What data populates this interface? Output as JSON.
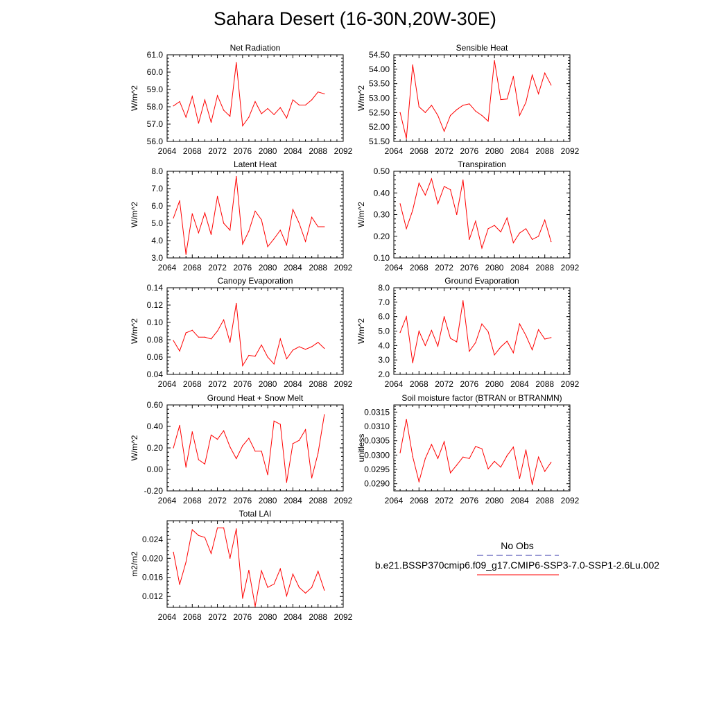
{
  "title": "Sahara Desert (16-30N,20W-30E)",
  "legend": {
    "obs_label": "No Obs",
    "obs_color": "#3333aa",
    "case_label": "b.e21.BSSP370cmip6.f09_g17.CMIP6-SSP3-7.0-SSP1-2.6Lu.002",
    "case_color": "#ff0000"
  },
  "series_color": "#ff0000",
  "chart_data": [
    {
      "type": "line",
      "title": "Net Radiation",
      "ylabel": "W/m^2",
      "xlim": [
        2064,
        2092
      ],
      "xticks": [
        2064,
        2068,
        2072,
        2076,
        2080,
        2084,
        2088,
        2092
      ],
      "ylim": [
        56.0,
        61.0
      ],
      "yticks": [
        "56.0",
        "57.0",
        "58.0",
        "59.0",
        "60.0",
        "61.0"
      ],
      "x": [
        2065,
        2066,
        2067,
        2068,
        2069,
        2070,
        2071,
        2072,
        2073,
        2074,
        2075,
        2076,
        2077,
        2078,
        2079,
        2080,
        2081,
        2082,
        2083,
        2084,
        2085,
        2086,
        2087,
        2088,
        2089
      ],
      "values": [
        58.05,
        58.3,
        57.4,
        58.6,
        57.05,
        58.4,
        57.1,
        58.65,
        57.8,
        57.45,
        60.55,
        56.9,
        57.4,
        58.3,
        57.6,
        57.9,
        57.55,
        57.95,
        57.35,
        58.4,
        58.1,
        58.1,
        58.4,
        58.85,
        58.75
      ]
    },
    {
      "type": "line",
      "title": "Sensible Heat",
      "ylabel": "W/m^2",
      "xlim": [
        2064,
        2092
      ],
      "xticks": [
        2064,
        2068,
        2072,
        2076,
        2080,
        2084,
        2088,
        2092
      ],
      "ylim": [
        51.5,
        54.5
      ],
      "yticks": [
        "51.50",
        "52.00",
        "52.50",
        "53.00",
        "53.50",
        "54.00",
        "54.50"
      ],
      "x": [
        2065,
        2066,
        2067,
        2068,
        2069,
        2070,
        2071,
        2072,
        2073,
        2074,
        2075,
        2076,
        2077,
        2078,
        2079,
        2080,
        2081,
        2082,
        2083,
        2084,
        2085,
        2086,
        2087,
        2088,
        2089
      ],
      "values": [
        52.5,
        51.6,
        54.15,
        52.7,
        52.5,
        52.75,
        52.4,
        51.85,
        52.4,
        52.6,
        52.75,
        52.8,
        52.55,
        52.4,
        52.2,
        54.3,
        52.95,
        52.97,
        53.75,
        52.4,
        52.85,
        53.8,
        53.15,
        53.87,
        53.45
      ]
    },
    {
      "type": "line",
      "title": "Latent Heat",
      "ylabel": "W/m^2",
      "xlim": [
        2064,
        2092
      ],
      "xticks": [
        2064,
        2068,
        2072,
        2076,
        2080,
        2084,
        2088,
        2092
      ],
      "ylim": [
        3.0,
        8.0
      ],
      "yticks": [
        "3.0",
        "4.0",
        "5.0",
        "6.0",
        "7.0",
        "8.0"
      ],
      "x": [
        2065,
        2066,
        2067,
        2068,
        2069,
        2070,
        2071,
        2072,
        2073,
        2074,
        2075,
        2076,
        2077,
        2078,
        2079,
        2080,
        2081,
        2082,
        2083,
        2084,
        2085,
        2086,
        2087,
        2088,
        2089
      ],
      "values": [
        5.3,
        6.3,
        3.2,
        5.55,
        4.45,
        5.6,
        4.35,
        6.55,
        5.0,
        4.6,
        7.7,
        3.8,
        4.55,
        5.7,
        5.2,
        3.65,
        4.1,
        4.6,
        3.75,
        5.8,
        5.0,
        3.95,
        5.35,
        4.8,
        4.8
      ]
    },
    {
      "type": "line",
      "title": "Transpiration",
      "ylabel": "W/m^2",
      "xlim": [
        2064,
        2092
      ],
      "xticks": [
        2064,
        2068,
        2072,
        2076,
        2080,
        2084,
        2088,
        2092
      ],
      "ylim": [
        0.1,
        0.5
      ],
      "yticks": [
        "0.10",
        "0.20",
        "0.30",
        "0.40",
        "0.50"
      ],
      "x": [
        2065,
        2066,
        2067,
        2068,
        2069,
        2070,
        2071,
        2072,
        2073,
        2074,
        2075,
        2076,
        2077,
        2078,
        2079,
        2080,
        2081,
        2082,
        2083,
        2084,
        2085,
        2086,
        2087,
        2088,
        2089
      ],
      "values": [
        0.35,
        0.235,
        0.32,
        0.445,
        0.39,
        0.465,
        0.35,
        0.43,
        0.415,
        0.3,
        0.46,
        0.185,
        0.27,
        0.145,
        0.235,
        0.25,
        0.22,
        0.285,
        0.17,
        0.215,
        0.235,
        0.185,
        0.2,
        0.275,
        0.175
      ]
    },
    {
      "type": "line",
      "title": "Canopy Evaporation",
      "ylabel": "W/m^2",
      "xlim": [
        2064,
        2092
      ],
      "xticks": [
        2064,
        2068,
        2072,
        2076,
        2080,
        2084,
        2088,
        2092
      ],
      "ylim": [
        0.04,
        0.14
      ],
      "yticks": [
        "0.04",
        "0.06",
        "0.08",
        "0.10",
        "0.12",
        "0.14"
      ],
      "x": [
        2065,
        2066,
        2067,
        2068,
        2069,
        2070,
        2071,
        2072,
        2073,
        2074,
        2075,
        2076,
        2077,
        2078,
        2079,
        2080,
        2081,
        2082,
        2083,
        2084,
        2085,
        2086,
        2087,
        2088,
        2089
      ],
      "values": [
        0.079,
        0.067,
        0.088,
        0.091,
        0.083,
        0.083,
        0.081,
        0.09,
        0.103,
        0.077,
        0.122,
        0.05,
        0.062,
        0.061,
        0.074,
        0.06,
        0.052,
        0.081,
        0.058,
        0.068,
        0.072,
        0.069,
        0.072,
        0.077,
        0.07
      ]
    },
    {
      "type": "line",
      "title": "Ground Evaporation",
      "ylabel": "W/m^2",
      "xlim": [
        2064,
        2092
      ],
      "xticks": [
        2064,
        2068,
        2072,
        2076,
        2080,
        2084,
        2088,
        2092
      ],
      "ylim": [
        2.0,
        8.0
      ],
      "yticks": [
        "2.0",
        "3.0",
        "4.0",
        "5.0",
        "6.0",
        "7.0",
        "8.0"
      ],
      "x": [
        2065,
        2066,
        2067,
        2068,
        2069,
        2070,
        2071,
        2072,
        2073,
        2074,
        2075,
        2076,
        2077,
        2078,
        2079,
        2080,
        2081,
        2082,
        2083,
        2084,
        2085,
        2086,
        2087,
        2088,
        2089
      ],
      "values": [
        4.9,
        6.0,
        2.8,
        5.0,
        4.0,
        5.05,
        3.95,
        6.0,
        4.5,
        4.25,
        7.1,
        3.6,
        4.2,
        5.5,
        4.95,
        3.35,
        3.9,
        4.3,
        3.5,
        5.5,
        4.7,
        3.7,
        5.1,
        4.45,
        4.55
      ]
    },
    {
      "type": "line",
      "title": "Ground Heat + Snow Melt",
      "ylabel": "W/m^2",
      "xlim": [
        2064,
        2092
      ],
      "xticks": [
        2064,
        2068,
        2072,
        2076,
        2080,
        2084,
        2088,
        2092
      ],
      "ylim": [
        -0.2,
        0.6
      ],
      "yticks": [
        "-0.20",
        "0.00",
        "0.20",
        "0.40",
        "0.60"
      ],
      "x": [
        2065,
        2066,
        2067,
        2068,
        2069,
        2070,
        2071,
        2072,
        2073,
        2074,
        2075,
        2076,
        2077,
        2078,
        2079,
        2080,
        2081,
        2082,
        2083,
        2084,
        2085,
        2086,
        2087,
        2088,
        2089
      ],
      "values": [
        0.2,
        0.41,
        0.02,
        0.35,
        0.09,
        0.05,
        0.32,
        0.28,
        0.36,
        0.21,
        0.1,
        0.22,
        0.29,
        0.17,
        0.17,
        -0.05,
        0.45,
        0.42,
        -0.12,
        0.24,
        0.27,
        0.37,
        -0.08,
        0.15,
        0.51
      ]
    },
    {
      "type": "line",
      "title": "Soil moisture factor (BTRAN or BTRANMN)",
      "ylabel": "unitless",
      "xlim": [
        2064,
        2092
      ],
      "xticks": [
        2064,
        2068,
        2072,
        2076,
        2080,
        2084,
        2088,
        2092
      ],
      "ylim": [
        0.02875,
        0.03175
      ],
      "yticks": [
        "0.0290",
        "0.0295",
        "0.0300",
        "0.0305",
        "0.0310",
        "0.0315"
      ],
      "x": [
        2065,
        2066,
        2067,
        2068,
        2069,
        2070,
        2071,
        2072,
        2073,
        2074,
        2075,
        2076,
        2077,
        2078,
        2079,
        2080,
        2081,
        2082,
        2083,
        2084,
        2085,
        2086,
        2087,
        2088,
        2089
      ],
      "values": [
        0.03008,
        0.03125,
        0.02995,
        0.02907,
        0.02988,
        0.03037,
        0.02988,
        0.03047,
        0.02938,
        0.02965,
        0.02993,
        0.02988,
        0.0303,
        0.03022,
        0.02952,
        0.02978,
        0.02958,
        0.02998,
        0.03028,
        0.02918,
        0.03018,
        0.02897,
        0.02993,
        0.02943,
        0.02975
      ]
    },
    {
      "type": "line",
      "title": "Total LAI",
      "ylabel": "m2/m2",
      "xlim": [
        2064,
        2092
      ],
      "xticks": [
        2064,
        2068,
        2072,
        2076,
        2080,
        2084,
        2088,
        2092
      ],
      "ylim": [
        0.0097,
        0.0279
      ],
      "yticks": [
        "0.012",
        "0.016",
        "0.020",
        "0.024"
      ],
      "x": [
        2065,
        2066,
        2067,
        2068,
        2069,
        2070,
        2071,
        2072,
        2073,
        2074,
        2075,
        2076,
        2077,
        2078,
        2079,
        2080,
        2081,
        2082,
        2083,
        2084,
        2085,
        2086,
        2087,
        2088,
        2089
      ],
      "values": [
        0.0213,
        0.0145,
        0.0192,
        0.026,
        0.0248,
        0.0244,
        0.021,
        0.0264,
        0.0264,
        0.02,
        0.0262,
        0.0116,
        0.0175,
        0.0099,
        0.0174,
        0.0139,
        0.0146,
        0.0178,
        0.0121,
        0.0167,
        0.0139,
        0.0127,
        0.0139,
        0.0173,
        0.0133
      ]
    }
  ]
}
